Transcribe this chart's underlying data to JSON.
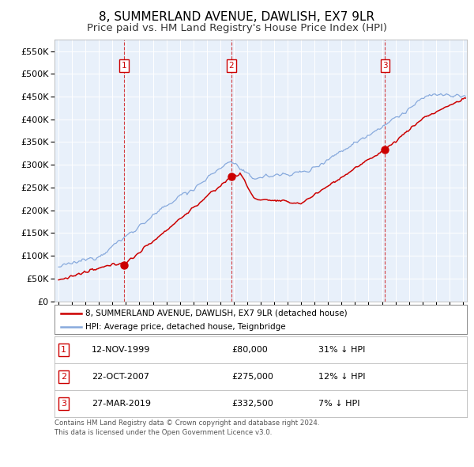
{
  "title": "8, SUMMERLAND AVENUE, DAWLISH, EX7 9LR",
  "subtitle": "Price paid vs. HM Land Registry's House Price Index (HPI)",
  "title_fontsize": 11,
  "subtitle_fontsize": 9.5,
  "ylabel_ticks": [
    "£0",
    "£50K",
    "£100K",
    "£150K",
    "£200K",
    "£250K",
    "£300K",
    "£350K",
    "£400K",
    "£450K",
    "£500K",
    "£550K"
  ],
  "ytick_values": [
    0,
    50000,
    100000,
    150000,
    200000,
    250000,
    300000,
    350000,
    400000,
    450000,
    500000,
    550000
  ],
  "ylim": [
    0,
    575000
  ],
  "xlim_start": 1994.7,
  "xlim_end": 2025.3,
  "sales": [
    {
      "num": 1,
      "date": "12-NOV-1999",
      "price": 80000,
      "year": 1999.87,
      "pct": "31%",
      "label": "1"
    },
    {
      "num": 2,
      "date": "22-OCT-2007",
      "price": 275000,
      "year": 2007.81,
      "pct": "12%",
      "label": "2"
    },
    {
      "num": 3,
      "date": "27-MAR-2019",
      "price": 332500,
      "year": 2019.23,
      "pct": "7%",
      "label": "3"
    }
  ],
  "legend_line1": "8, SUMMERLAND AVENUE, DAWLISH, EX7 9LR (detached house)",
  "legend_line2": "HPI: Average price, detached house, Teignbridge",
  "red_color": "#cc0000",
  "blue_color": "#88aadd",
  "table_rows": [
    [
      "1",
      "12-NOV-1999",
      "£80,000",
      "31% ↓ HPI"
    ],
    [
      "2",
      "22-OCT-2007",
      "£275,000",
      "12% ↓ HPI"
    ],
    [
      "3",
      "27-MAR-2019",
      "£332,500",
      "7% ↓ HPI"
    ]
  ],
  "footer": "Contains HM Land Registry data © Crown copyright and database right 2024.\nThis data is licensed under the Open Government Licence v3.0.",
  "chart_bg": "#e8f0fa"
}
